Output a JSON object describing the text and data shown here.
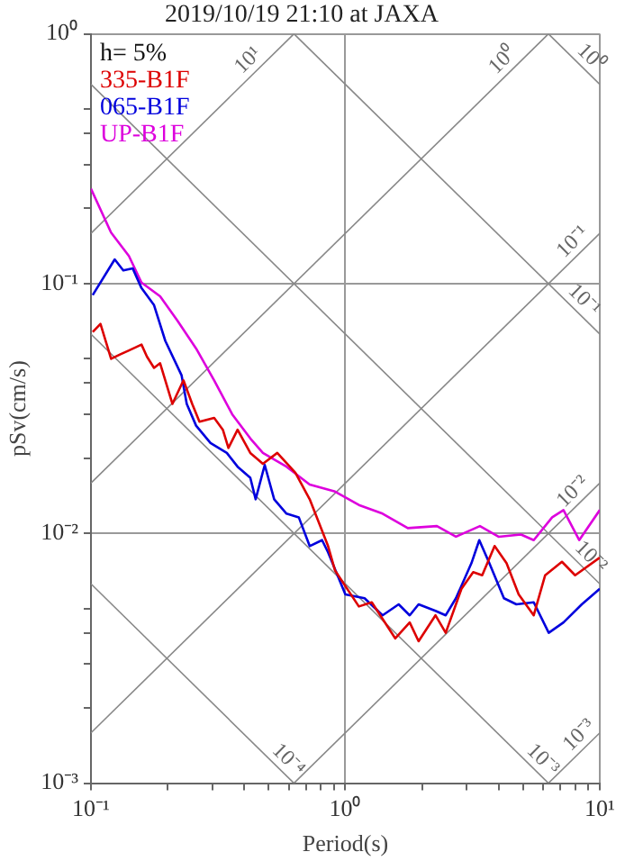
{
  "chart_data": {
    "type": "line",
    "title": "2019/10/19 21:10 at JAXA",
    "xlabel": "Period(s)",
    "ylabel": "pSv(cm/s)",
    "log": "xy",
    "grid": true,
    "legend": "top left",
    "marker": "none",
    "line_style": "solid",
    "xlim": [
      0.1,
      10
    ],
    "ylim": [
      0.001,
      1
    ],
    "xticks": [
      {
        "value": 0.1,
        "label": "10⁻¹"
      },
      {
        "value": 0.2,
        "label": null
      },
      {
        "value": 0.3,
        "label": null
      },
      {
        "value": 0.4,
        "label": null
      },
      {
        "value": 0.5,
        "label": null
      },
      {
        "value": 0.6,
        "label": null
      },
      {
        "value": 0.7,
        "label": null
      },
      {
        "value": 0.8,
        "label": null
      },
      {
        "value": 0.9,
        "label": null
      },
      {
        "value": 1,
        "label": "10⁰"
      },
      {
        "value": 2,
        "label": null
      },
      {
        "value": 3,
        "label": null
      },
      {
        "value": 4,
        "label": null
      },
      {
        "value": 5,
        "label": null
      },
      {
        "value": 6,
        "label": null
      },
      {
        "value": 7,
        "label": null
      },
      {
        "value": 8,
        "label": null
      },
      {
        "value": 9,
        "label": null
      },
      {
        "value": 10,
        "label": "10¹"
      }
    ],
    "yticks": [
      {
        "value": 0.001,
        "label": "10⁻³"
      },
      {
        "value": 0.002,
        "label": null
      },
      {
        "value": 0.003,
        "label": null
      },
      {
        "value": 0.004,
        "label": null
      },
      {
        "value": 0.005,
        "label": null
      },
      {
        "value": 0.01,
        "label": "10⁻²"
      },
      {
        "value": 0.02,
        "label": null
      },
      {
        "value": 0.03,
        "label": null
      },
      {
        "value": 0.04,
        "label": null
      },
      {
        "value": 0.05,
        "label": null
      },
      {
        "value": 0.1,
        "label": "10⁻¹"
      },
      {
        "value": 0.2,
        "label": null
      },
      {
        "value": 0.3,
        "label": null
      },
      {
        "value": 0.4,
        "label": null
      },
      {
        "value": 0.5,
        "label": null
      },
      {
        "value": 1,
        "label": "10⁰"
      }
    ],
    "annotations": [
      "h= 5%",
      {
        "text": "10¹",
        "x": 0.45,
        "y": 0.72
      },
      {
        "text": "10⁰",
        "x": 4.5,
        "y": 0.72
      },
      {
        "text": "10⁰",
        "x": 8.5,
        "y": 0.74
      },
      {
        "text": "10⁻¹",
        "x": 8.5,
        "y": 0.135
      },
      {
        "text": "10⁻¹",
        "x": 8,
        "y": 0.079
      },
      {
        "text": "10⁻²",
        "x": 8.5,
        "y": 0.0135
      },
      {
        "text": "10⁻²",
        "x": 8.5,
        "y": 0.0074
      },
      {
        "text": "10⁻⁴",
        "x": 0.55,
        "y": 0.00114
      },
      {
        "text": "10⁻³",
        "x": 5.5,
        "y": 0.00114
      },
      {
        "text": "10⁻³",
        "x": 9,
        "y": 0.00143
      }
    ],
    "series": [
      {
        "name": "335-B1F",
        "color": "#dd0000",
        "x": [
          0.1016,
          0.109,
          0.12,
          0.13,
          0.141,
          0.158,
          0.166,
          0.177,
          0.187,
          0.209,
          0.231,
          0.25,
          0.267,
          0.305,
          0.33,
          0.347,
          0.377,
          0.423,
          0.474,
          0.54,
          0.636,
          0.724,
          0.855,
          0.911,
          1.13,
          1.27,
          1.57,
          1.79,
          1.94,
          2.26,
          2.48,
          2.86,
          3.18,
          3.45,
          3.86,
          4.3,
          4.8,
          5.5,
          6.1,
          7.1,
          8.0,
          10
        ],
        "values": [
          0.064,
          0.069,
          0.05,
          0.052,
          0.054,
          0.057,
          0.051,
          0.046,
          0.048,
          0.033,
          0.041,
          0.033,
          0.028,
          0.029,
          0.026,
          0.022,
          0.026,
          0.021,
          0.019,
          0.021,
          0.0175,
          0.0137,
          0.0089,
          0.0071,
          0.0051,
          0.0053,
          0.0038,
          0.0044,
          0.0037,
          0.0047,
          0.004,
          0.006,
          0.007,
          0.0068,
          0.0089,
          0.0076,
          0.0057,
          0.0047,
          0.0068,
          0.0077,
          0.0068,
          0.008
        ]
      },
      {
        "name": "065-B1F",
        "color": "#0000dd",
        "x": [
          0.1016,
          0.124,
          0.134,
          0.146,
          0.158,
          0.177,
          0.196,
          0.227,
          0.238,
          0.259,
          0.295,
          0.342,
          0.377,
          0.423,
          0.444,
          0.482,
          0.525,
          0.587,
          0.656,
          0.724,
          0.81,
          0.855,
          1.0,
          1.19,
          1.4,
          1.62,
          1.79,
          1.94,
          2.26,
          2.48,
          2.72,
          3.13,
          3.36,
          3.68,
          4.2,
          4.7,
          5.5,
          6.3,
          7.2,
          8.5,
          10
        ],
        "values": [
          0.09,
          0.125,
          0.113,
          0.115,
          0.096,
          0.082,
          0.059,
          0.043,
          0.033,
          0.027,
          0.023,
          0.021,
          0.0185,
          0.0167,
          0.0137,
          0.0188,
          0.0137,
          0.012,
          0.0116,
          0.0089,
          0.0094,
          0.0084,
          0.0057,
          0.0055,
          0.0047,
          0.0052,
          0.0047,
          0.0052,
          0.0049,
          0.0047,
          0.0055,
          0.0076,
          0.0094,
          0.0076,
          0.0055,
          0.0052,
          0.0053,
          0.004,
          0.0044,
          0.0052,
          0.006
        ]
      },
      {
        "name": "UP-B1F",
        "color": "#dd00dd",
        "x": [
          0.1,
          0.12,
          0.141,
          0.158,
          0.187,
          0.219,
          0.259,
          0.305,
          0.359,
          0.423,
          0.474,
          0.587,
          0.724,
          0.911,
          1.13,
          1.4,
          1.76,
          2.29,
          2.72,
          3.38,
          4.0,
          4.9,
          5.5,
          6.5,
          7.2,
          8.3,
          10
        ],
        "values": [
          0.24,
          0.16,
          0.129,
          0.101,
          0.089,
          0.071,
          0.055,
          0.041,
          0.03,
          0.024,
          0.021,
          0.0185,
          0.0157,
          0.0147,
          0.013,
          0.012,
          0.0105,
          0.0107,
          0.0097,
          0.0107,
          0.0097,
          0.0099,
          0.0094,
          0.0116,
          0.0124,
          0.0094,
          0.0124
        ]
      },
      {
        "type": "line",
        "color": "#888888",
        "x": [
          0.1,
          0.628
        ],
        "values": [
          0.159,
          1
        ]
      },
      {
        "type": "line",
        "color": "#888888",
        "x": [
          0.1,
          6.283
        ],
        "values": [
          0.0159,
          1
        ]
      },
      {
        "type": "line",
        "color": "#888888",
        "x": [
          0.1,
          10
        ],
        "values": [
          0.00159,
          0.159
        ]
      },
      {
        "type": "line",
        "color": "#888888",
        "x": [
          0.628,
          10
        ],
        "values": [
          0.001,
          0.0159
        ]
      },
      {
        "type": "line",
        "color": "#888888",
        "x": [
          6.283,
          10
        ],
        "values": [
          0.001,
          0.00159
        ]
      },
      {
        "type": "line",
        "color": "#888888",
        "x": [
          6.283,
          10
        ],
        "values": [
          1,
          0.628
        ]
      },
      {
        "type": "line",
        "color": "#888888",
        "x": [
          0.628,
          10
        ],
        "values": [
          1,
          0.0628
        ]
      },
      {
        "type": "line",
        "color": "#888888",
        "x": [
          0.1,
          10
        ],
        "values": [
          0.628,
          0.00628
        ]
      },
      {
        "type": "line",
        "color": "#888888",
        "x": [
          0.1,
          6.283
        ],
        "values": [
          0.0628,
          0.001
        ]
      },
      {
        "type": "line",
        "color": "#888888",
        "x": [
          0.1,
          0.628
        ],
        "values": [
          0.00628,
          0.001
        ]
      }
    ]
  }
}
